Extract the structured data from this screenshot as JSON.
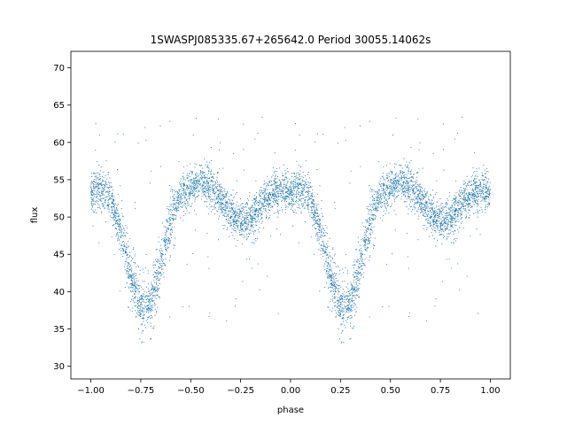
{
  "chart_data": {
    "type": "scatter",
    "title": "1SWASPJ085335.67+265642.0 Period 30055.14062s",
    "xlabel": "phase",
    "ylabel": "flux",
    "xlim": [
      -1.1,
      1.1
    ],
    "ylim": [
      28.3,
      72.2
    ],
    "xticks": [
      -1.0,
      -0.75,
      -0.5,
      -0.25,
      0.0,
      0.25,
      0.5,
      0.75,
      1.0
    ],
    "xtick_labels": [
      "−1.00",
      "−0.75",
      "−0.50",
      "−0.25",
      "0.00",
      "0.25",
      "0.50",
      "0.75",
      "1.00"
    ],
    "yticks": [
      30,
      35,
      40,
      45,
      50,
      55,
      60,
      65,
      70
    ],
    "ytick_labels": [
      "30",
      "35",
      "40",
      "45",
      "50",
      "55",
      "60",
      "65",
      "70"
    ],
    "grid": false,
    "legend": "none",
    "marker_color": "#1f77b4",
    "profile": {
      "x": [
        0.0,
        0.05,
        0.1,
        0.15,
        0.2,
        0.25,
        0.3,
        0.35,
        0.4,
        0.45,
        0.5,
        0.55,
        0.6,
        0.65,
        0.7,
        0.75,
        0.8,
        0.85,
        0.9,
        0.95,
        1.0
      ],
      "y": [
        53.2,
        53.8,
        52.5,
        48.0,
        42.0,
        38.0,
        38.5,
        43.5,
        49.5,
        53.0,
        54.0,
        54.5,
        54.0,
        52.5,
        50.5,
        49.5,
        49.8,
        51.5,
        53.0,
        53.6,
        53.5
      ]
    }
  }
}
